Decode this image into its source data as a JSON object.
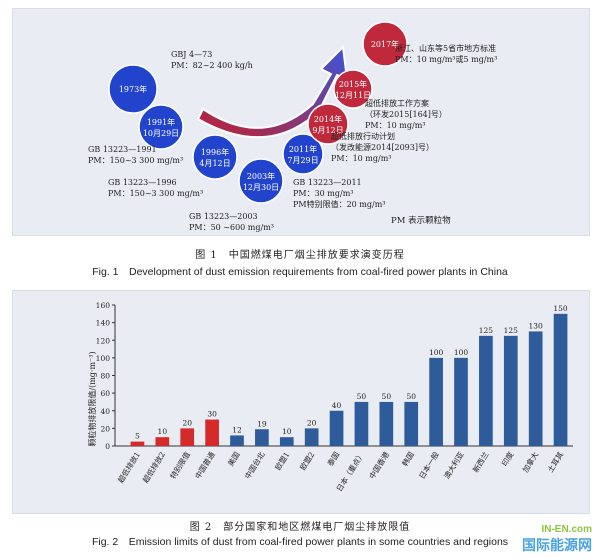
{
  "figure1": {
    "caption_cn": "图 1　中国燃煤电厂烟尘排放要求演变历程",
    "caption_en": "Fig. 1　Development of dust emission requirements from coal-fired power plants in China",
    "nodes": [
      {
        "line1": "1973年",
        "line2": "",
        "color": "#2244cc"
      },
      {
        "line1": "1991年",
        "line2": "10月29日",
        "color": "#2244cc"
      },
      {
        "line1": "1996年",
        "line2": "4月12日",
        "color": "#2244cc"
      },
      {
        "line1": "2003年",
        "line2": "12月30日",
        "color": "#2244cc"
      },
      {
        "line1": "2011年",
        "line2": "7月29日",
        "color": "#2244cc"
      },
      {
        "line1": "2014年",
        "line2": "9月12日",
        "color": "#c0283c"
      },
      {
        "line1": "2015年",
        "line2": "12月11日",
        "color": "#c0283c"
      },
      {
        "line1": "2017年",
        "line2": "",
        "color": "#c0283c"
      }
    ],
    "notes": [
      {
        "l1": "GBJ 4—73",
        "l2": "PM：82~2 400 kg/h",
        "l3": ""
      },
      {
        "l1": "GB 13223—1991",
        "l2": "PM：150~3 300 mg/m³",
        "l3": ""
      },
      {
        "l1": "GB 13223—1996",
        "l2": "PM：150~3 300 mg/m³",
        "l3": ""
      },
      {
        "l1": "GB 13223—2003",
        "l2": "PM：50 ~600 mg/m³",
        "l3": ""
      },
      {
        "l1": "GB 13223—2011",
        "l2": "PM：30 mg/m³",
        "l3": "PM特别限值：20 mg/m³"
      },
      {
        "l1": "超低排放行动计划",
        "l2": "（发改能源2014[2093]号）",
        "l3": "PM：10 mg/m³"
      },
      {
        "l1": "超低排放工作方案",
        "l2": "（环发2015[164]号）",
        "l3": "PM：10 mg/m³"
      },
      {
        "l1": "浙江、山东等5省市地方标准",
        "l2": "PM：10 mg/m³或5 mg/m³",
        "l3": ""
      }
    ],
    "pm_note": "PM 表示颗粒物"
  },
  "figure2": {
    "caption_cn": "图 2　部分国家和地区燃煤电厂烟尘排放限值",
    "caption_en": "Fig. 2　Emission limits of dust from coal-fired power plants in some countries and regions",
    "chart_data": {
      "type": "bar",
      "categories": [
        "超低排放1",
        "超低排放2",
        "特别限值",
        "中国普通",
        "美国",
        "中国台北",
        "欧盟1",
        "欧盟2",
        "泰国",
        "日本（重点）",
        "中国香港",
        "韩国",
        "日本一般",
        "澳大利亚",
        "新西兰",
        "印度",
        "加拿大",
        "土耳其"
      ],
      "values": [
        5,
        10,
        20,
        30,
        12,
        19,
        10,
        20,
        40,
        50,
        50,
        50,
        100,
        100,
        125,
        125,
        130,
        150
      ],
      "bar_colors": [
        "#d42a2a",
        "#d42a2a",
        "#d42a2a",
        "#d42a2a",
        "#2e5b9a",
        "#2e5b9a",
        "#2e5b9a",
        "#2e5b9a",
        "#2e5b9a",
        "#2e5b9a",
        "#2e5b9a",
        "#2e5b9a",
        "#2e5b9a",
        "#2e5b9a",
        "#2e5b9a",
        "#2e5b9a",
        "#2e5b9a",
        "#2e5b9a"
      ],
      "ylabel": "颗粒物排放限值/(mg·m⁻³)",
      "ylim": [
        0,
        160
      ],
      "yticks": [
        0,
        20,
        40,
        60,
        80,
        100,
        120,
        140,
        160
      ],
      "grid": false
    }
  },
  "watermark": {
    "line1": "IN-EN.com",
    "line2": "国际能源网"
  }
}
